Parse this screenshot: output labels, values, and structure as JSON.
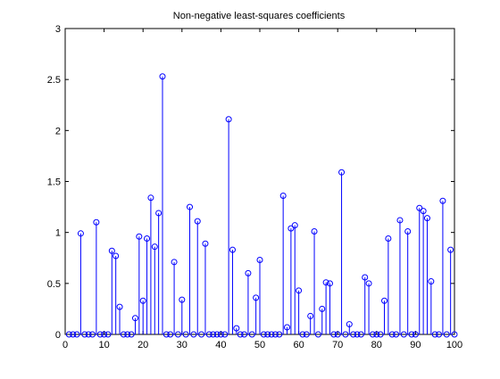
{
  "chart_data": {
    "type": "stem",
    "title": "Non-negative least-squares coefficients",
    "xlabel": "",
    "ylabel": "",
    "xlim": [
      0,
      100
    ],
    "ylim": [
      0,
      3
    ],
    "xticks": [
      0,
      10,
      20,
      30,
      40,
      50,
      60,
      70,
      80,
      90,
      100
    ],
    "yticks": [
      0,
      0.5,
      1,
      1.5,
      2,
      2.5,
      3
    ],
    "ytick_labels": [
      "0",
      "0.5",
      "1",
      "1.5",
      "2",
      "2.5",
      "3"
    ],
    "grid": false,
    "color": "#0000ff",
    "x": [
      1,
      2,
      3,
      4,
      5,
      6,
      7,
      8,
      9,
      10,
      11,
      12,
      13,
      14,
      15,
      16,
      17,
      18,
      19,
      20,
      21,
      22,
      23,
      24,
      25,
      26,
      27,
      28,
      29,
      30,
      31,
      32,
      33,
      34,
      35,
      36,
      37,
      38,
      39,
      40,
      41,
      42,
      43,
      44,
      45,
      46,
      47,
      48,
      49,
      50,
      51,
      52,
      53,
      54,
      55,
      56,
      57,
      58,
      59,
      60,
      61,
      62,
      63,
      64,
      65,
      66,
      67,
      68,
      69,
      70,
      71,
      72,
      73,
      74,
      75,
      76,
      77,
      78,
      79,
      80,
      81,
      82,
      83,
      84,
      85,
      86,
      87,
      88,
      89,
      90,
      91,
      92,
      93,
      94,
      95,
      96,
      97,
      98,
      99,
      100
    ],
    "values": [
      0,
      0,
      0,
      0.99,
      0,
      0,
      0,
      1.1,
      0,
      0,
      0,
      0.82,
      0.77,
      0.27,
      0,
      0,
      0,
      0.16,
      0.96,
      0.33,
      0.94,
      1.34,
      0.86,
      1.19,
      2.53,
      0,
      0,
      0.71,
      0,
      0.34,
      0,
      1.25,
      0,
      1.11,
      0,
      0.89,
      0,
      0,
      0,
      0,
      0,
      2.11,
      0.83,
      0.06,
      0,
      0,
      0.6,
      0,
      0.36,
      0.73,
      0,
      0,
      0,
      0,
      0,
      1.36,
      0.07,
      1.04,
      1.07,
      0.43,
      0,
      0,
      0.18,
      1.01,
      0,
      0.25,
      0.51,
      0.5,
      0,
      0,
      1.59,
      0,
      0.1,
      0,
      0,
      0,
      0.56,
      0.5,
      0,
      0,
      0,
      0.33,
      0.94,
      0,
      0,
      1.12,
      0,
      1.01,
      0,
      0,
      1.24,
      1.21,
      1.14,
      0.52,
      0,
      0,
      1.31,
      0,
      0.83,
      0
    ]
  }
}
